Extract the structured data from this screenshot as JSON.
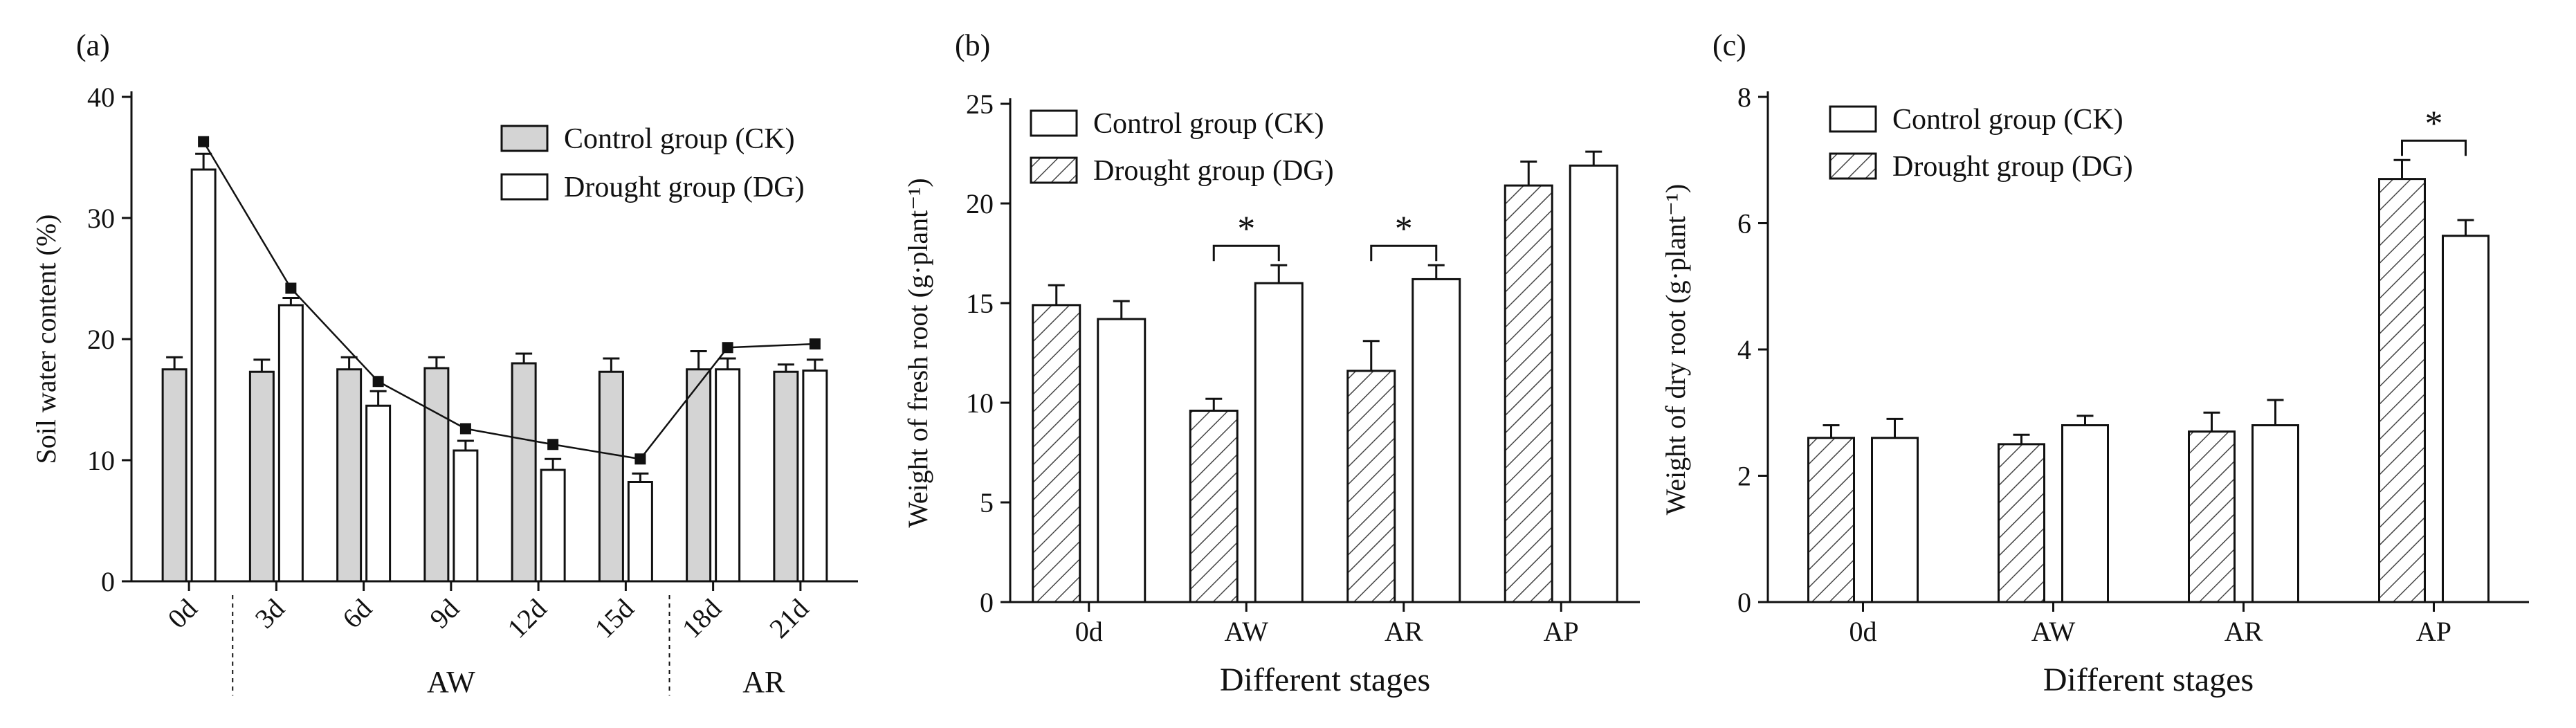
{
  "chart_data": [
    {
      "id": "a",
      "panel_label": "(a)",
      "type": "bar",
      "ylabel": "Soil water content (%)",
      "ylim": [
        0,
        40
      ],
      "yticks": [
        0,
        10,
        20,
        30,
        40
      ],
      "categories": [
        "0d",
        "3d",
        "6d",
        "9d",
        "12d",
        "15d",
        "18d",
        "21d"
      ],
      "group_labels": [
        "AW",
        "AR"
      ],
      "series": [
        {
          "name": "Control group (CK)",
          "style": "gray",
          "values": [
            17.5,
            17.3,
            17.5,
            17.6,
            18.0,
            17.3,
            17.5,
            17.3
          ],
          "errors": [
            1.0,
            1.0,
            1.0,
            0.9,
            0.8,
            1.1,
            1.5,
            0.6
          ]
        },
        {
          "name": "Drought group (DG)",
          "style": "open",
          "values": [
            34.0,
            22.8,
            14.5,
            10.8,
            9.2,
            8.2,
            17.5,
            17.4
          ],
          "errors": [
            1.3,
            0.6,
            1.2,
            0.8,
            0.9,
            0.7,
            0.9,
            0.9
          ]
        }
      ],
      "trend_line": {
        "values": [
          36.3,
          24.2,
          16.5,
          12.6,
          11.3,
          10.1,
          19.3,
          19.6
        ]
      }
    },
    {
      "id": "b",
      "panel_label": "(b)",
      "type": "bar",
      "ylabel": "Weight of fresh root (g·plant⁻¹)",
      "xlabel": "Different stages",
      "ylim": [
        0,
        25
      ],
      "yticks": [
        0,
        5,
        10,
        15,
        20,
        25
      ],
      "categories": [
        "0d",
        "AW",
        "AR",
        "AP"
      ],
      "series": [
        {
          "name": "Drought group (DG)",
          "style": "hatch",
          "values": [
            14.9,
            9.6,
            11.6,
            20.9
          ],
          "errors": [
            1.0,
            0.6,
            1.5,
            1.2
          ]
        },
        {
          "name": "Control group (CK)",
          "style": "open",
          "values": [
            14.2,
            16.0,
            16.2,
            21.9
          ],
          "errors": [
            0.9,
            0.9,
            0.7,
            0.7
          ]
        }
      ],
      "legend_order": [
        "Control group (CK)",
        "Drought group (DG)"
      ],
      "significance": [
        {
          "category_index": 1,
          "label": "*"
        },
        {
          "category_index": 2,
          "label": "*"
        }
      ]
    },
    {
      "id": "c",
      "panel_label": "(c)",
      "type": "bar",
      "ylabel": "Weight of dry root (g·plant⁻¹)",
      "xlabel": "Different stages",
      "ylim": [
        0,
        8
      ],
      "yticks": [
        0,
        2,
        4,
        6,
        8
      ],
      "categories": [
        "0d",
        "AW",
        "AR",
        "AP"
      ],
      "series": [
        {
          "name": "Drought group (DG)",
          "style": "hatch",
          "values": [
            2.6,
            2.5,
            2.7,
            6.7
          ],
          "errors": [
            0.2,
            0.15,
            0.3,
            0.3
          ]
        },
        {
          "name": "Control group (CK)",
          "style": "open",
          "values": [
            2.6,
            2.8,
            2.8,
            5.8
          ],
          "errors": [
            0.3,
            0.15,
            0.4,
            0.25
          ]
        }
      ],
      "legend_order": [
        "Control group (CK)",
        "Drought group (DG)"
      ],
      "significance": [
        {
          "category_index": 3,
          "label": "*"
        }
      ]
    }
  ]
}
